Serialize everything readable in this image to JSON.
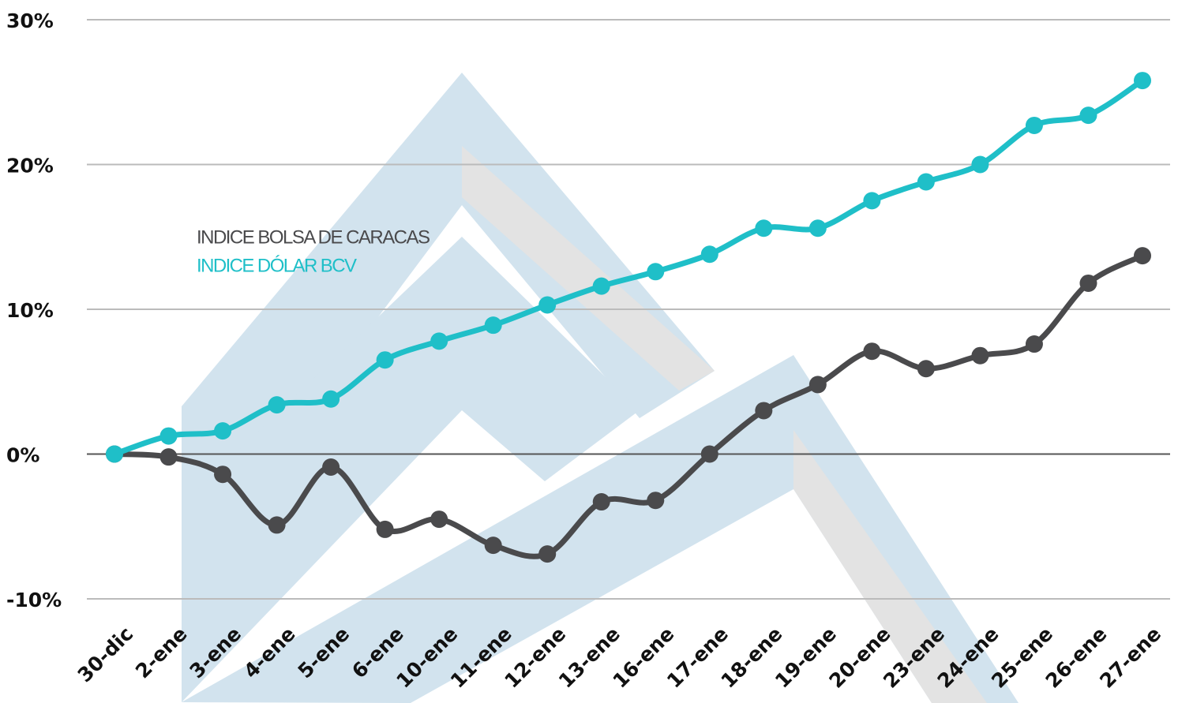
{
  "chart_data": {
    "type": "line",
    "categories": [
      "30-dic",
      "2-ene",
      "3-ene",
      "4-ene",
      "5-ene",
      "6-ene",
      "10-ene",
      "11-ene",
      "12-ene",
      "13-ene",
      "16-ene",
      "17-ene",
      "18-ene",
      "19-ene",
      "20-ene",
      "23-ene",
      "24-ene",
      "25-ene",
      "26-ene",
      "27-ene"
    ],
    "series": [
      {
        "name": "INDICE BOLSA DE CARACAS",
        "color": "#4a4a4c",
        "values": [
          0,
          -0.2,
          -1.4,
          -4.9,
          -0.9,
          -5.2,
          -4.5,
          -6.3,
          -6.9,
          -3.3,
          -3.2,
          0,
          3.0,
          4.8,
          7.1,
          5.9,
          6.8,
          7.6,
          11.8,
          13.7
        ]
      },
      {
        "name": "INDICE DÓLAR BCV",
        "color": "#1fbfc8",
        "values": [
          0,
          1.25,
          1.6,
          3.4,
          3.8,
          6.5,
          7.8,
          8.9,
          10.3,
          11.6,
          12.6,
          13.8,
          15.6,
          15.6,
          17.5,
          18.8,
          20.0,
          22.7,
          23.4,
          25.8
        ]
      }
    ],
    "ylim": [
      -10,
      30
    ],
    "yticks": [
      {
        "value": -10,
        "label": "-10%"
      },
      {
        "value": 0,
        "label": "0%"
      },
      {
        "value": 10,
        "label": "10%"
      },
      {
        "value": 20,
        "label": "20%"
      },
      {
        "value": 30,
        "label": "30%"
      }
    ],
    "grid": true
  }
}
